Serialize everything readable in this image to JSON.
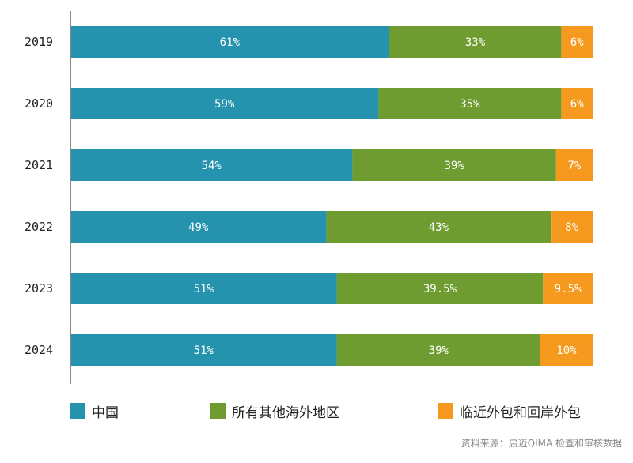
{
  "chart_data": {
    "type": "bar",
    "orientation": "horizontal",
    "stacked": true,
    "categories": [
      "2019",
      "2020",
      "2021",
      "2022",
      "2023",
      "2024"
    ],
    "series": [
      {
        "name": "中国",
        "color": "#2593ae",
        "values": [
          61,
          59,
          54,
          49,
          51,
          51
        ],
        "labels": [
          "61%",
          "59%",
          "54%",
          "49%",
          "51%",
          "51%"
        ]
      },
      {
        "name": "所有其他海外地区",
        "color": "#6e9c31",
        "values": [
          33,
          35,
          39,
          43,
          39.5,
          39
        ],
        "labels": [
          "33%",
          "35%",
          "39%",
          "43%",
          "39.5%",
          "39%"
        ]
      },
      {
        "name": "临近外包和回岸外包",
        "color": "#f59a1f",
        "values": [
          6,
          6,
          7,
          8,
          9.5,
          10
        ],
        "labels": [
          "6%",
          "6%",
          "7%",
          "8%",
          "9.5%",
          "10%"
        ]
      }
    ],
    "xlim": [
      0,
      100
    ],
    "grid": false,
    "legend_position": "bottom"
  },
  "source_note": "资料来源：启迈QIMA 检查和审核数据"
}
